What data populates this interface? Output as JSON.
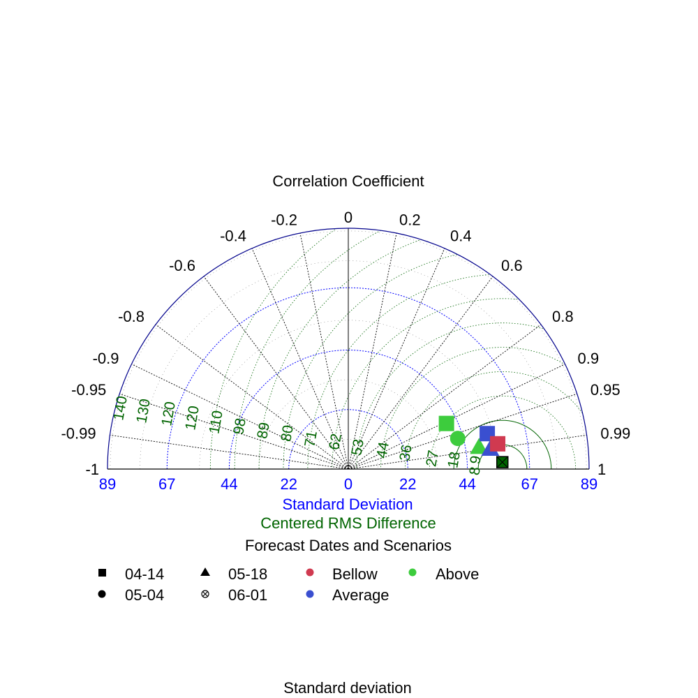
{
  "chart_data": {
    "type": "taylor",
    "title": "Correlation Coefficient",
    "xlabel": "Standard Deviation",
    "rms_label": "Centered RMS Difference",
    "bottom_label": "Standard deviation",
    "std_max": 89,
    "std_ticks": [
      89,
      67,
      44,
      22,
      0,
      22,
      44,
      67,
      89
    ],
    "std_tick_values": [
      -89,
      -67,
      -44,
      -22,
      0,
      22,
      44,
      67,
      89
    ],
    "corr_ticks": [
      {
        "value": 1,
        "label": "1"
      },
      {
        "value": 0.99,
        "label": "0.99"
      },
      {
        "value": 0.95,
        "label": "0.95"
      },
      {
        "value": 0.9,
        "label": "0.9"
      },
      {
        "value": 0.8,
        "label": "0.8"
      },
      {
        "value": 0.6,
        "label": "0.6"
      },
      {
        "value": 0.4,
        "label": "0.4"
      },
      {
        "value": 0.2,
        "label": "0.2"
      },
      {
        "value": 0,
        "label": "0"
      },
      {
        "value": -0.2,
        "label": "-0.2"
      },
      {
        "value": -0.4,
        "label": "-0.4"
      },
      {
        "value": -0.6,
        "label": "-0.6"
      },
      {
        "value": -0.8,
        "label": "-0.8"
      },
      {
        "value": -0.9,
        "label": "-0.9"
      },
      {
        "value": -0.95,
        "label": "-0.95"
      },
      {
        "value": -0.99,
        "label": "-0.99"
      },
      {
        "value": -1,
        "label": "-1"
      }
    ],
    "reference_std": 57,
    "rms_labels": [
      {
        "value": 8,
        "label": "8"
      },
      {
        "value": 9,
        "label": "9"
      },
      {
        "value": 18,
        "label": "18"
      },
      {
        "value": 27,
        "label": "27"
      },
      {
        "value": 36,
        "label": "36"
      },
      {
        "value": 44,
        "label": "44"
      },
      {
        "value": 53,
        "label": "53"
      },
      {
        "value": 62,
        "label": "62"
      },
      {
        "value": 71,
        "label": "71"
      },
      {
        "value": 80,
        "label": "80"
      },
      {
        "value": 89,
        "label": "89"
      },
      {
        "value": 98,
        "label": "98"
      },
      {
        "value": 110,
        "label": "110"
      },
      {
        "value": 120,
        "label": "120"
      },
      {
        "value": 120,
        "label": "120"
      },
      {
        "value": 130,
        "label": "130"
      },
      {
        "value": 140,
        "label": "140"
      }
    ],
    "legend_title": "Forecast Dates and Scenarios",
    "legend_shapes": [
      {
        "label": "04-14",
        "shape": "square"
      },
      {
        "label": "05-04",
        "shape": "circle"
      },
      {
        "label": "05-18",
        "shape": "triangle"
      },
      {
        "label": "06-01",
        "shape": "crossed-circle"
      }
    ],
    "legend_scenarios": [
      {
        "label": "Bellow",
        "color": "#d03a50"
      },
      {
        "label": "Average",
        "color": "#3a4fd0"
      },
      {
        "label": "Above",
        "color": "#3dcc3d"
      }
    ],
    "points": [
      {
        "date": "04-14",
        "scenario": "Above",
        "std": 40,
        "corr": 0.907
      },
      {
        "date": "05-04",
        "scenario": "Above",
        "std": 42,
        "corr": 0.963
      },
      {
        "date": "05-18",
        "scenario": "Above",
        "std": 49,
        "corr": 0.986
      },
      {
        "date": "04-14",
        "scenario": "Average",
        "std": 53,
        "corr": 0.969
      },
      {
        "date": "05-18",
        "scenario": "Average",
        "std": 53,
        "corr": 0.99
      },
      {
        "date": "04-14",
        "scenario": "Bellow",
        "std": 56,
        "corr": 0.986
      },
      {
        "date": "04-14",
        "scenario": "Reference",
        "std": 57,
        "corr": 0.999
      }
    ],
    "colors": {
      "frame": "#00008b",
      "std_grid": "#0000ff",
      "rms_grid": "#006400",
      "corr_grid": "#000000",
      "reference": "#006400"
    }
  }
}
